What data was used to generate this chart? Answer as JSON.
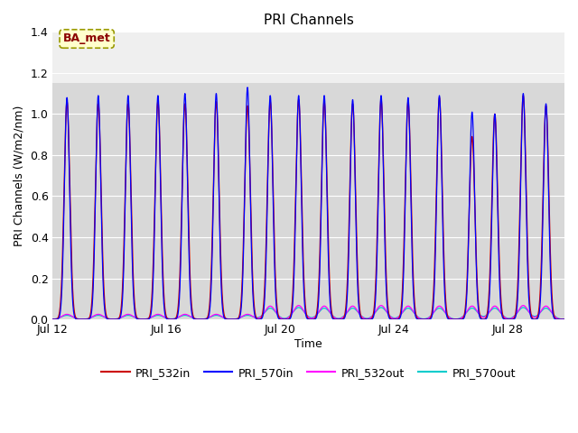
{
  "title": "PRI Channels",
  "ylabel": "PRI Channels (W/m2/nm)",
  "xlabel": "Time",
  "annotation": "BA_met",
  "ylim": [
    0,
    1.4
  ],
  "xlim": [
    12,
    30
  ],
  "xtick_days": [
    12,
    16,
    20,
    24,
    28
  ],
  "xtick_labels": [
    "Jul 12",
    "Jul 16",
    "Jul 20",
    "Jul 24",
    "Jul 28"
  ],
  "colors": {
    "PRI_532in": "#cc0000",
    "PRI_570in": "#0000ff",
    "PRI_532out": "#ff00ff",
    "PRI_570out": "#00cccc"
  },
  "bg_color": "#d8d8d8",
  "fig_bg": "#ffffff",
  "peak_days": [
    12.5,
    13.6,
    14.65,
    15.7,
    16.65,
    17.75,
    18.85,
    19.65,
    20.65,
    21.55,
    22.55,
    23.55,
    24.5,
    25.6,
    26.75,
    27.55,
    28.55,
    29.35
  ],
  "peak_heights_570in": [
    1.08,
    1.09,
    1.09,
    1.09,
    1.1,
    1.1,
    1.13,
    1.09,
    1.09,
    1.09,
    1.07,
    1.09,
    1.08,
    1.09,
    1.01,
    1.0,
    1.1,
    1.05
  ],
  "peak_heights_532in": [
    1.06,
    1.05,
    1.05,
    1.06,
    1.05,
    1.06,
    1.04,
    1.06,
    1.07,
    1.06,
    1.05,
    1.07,
    1.06,
    1.08,
    0.89,
    1.0,
    1.09,
    1.04
  ],
  "peak_heights_532out": [
    0.025,
    0.025,
    0.025,
    0.025,
    0.025,
    0.025,
    0.025,
    0.065,
    0.068,
    0.065,
    0.065,
    0.068,
    0.065,
    0.065,
    0.065,
    0.065,
    0.068,
    0.065
  ],
  "peak_heights_570out": [
    0.02,
    0.02,
    0.02,
    0.02,
    0.02,
    0.02,
    0.02,
    0.055,
    0.058,
    0.055,
    0.055,
    0.058,
    0.055,
    0.055,
    0.055,
    0.055,
    0.058,
    0.055
  ]
}
